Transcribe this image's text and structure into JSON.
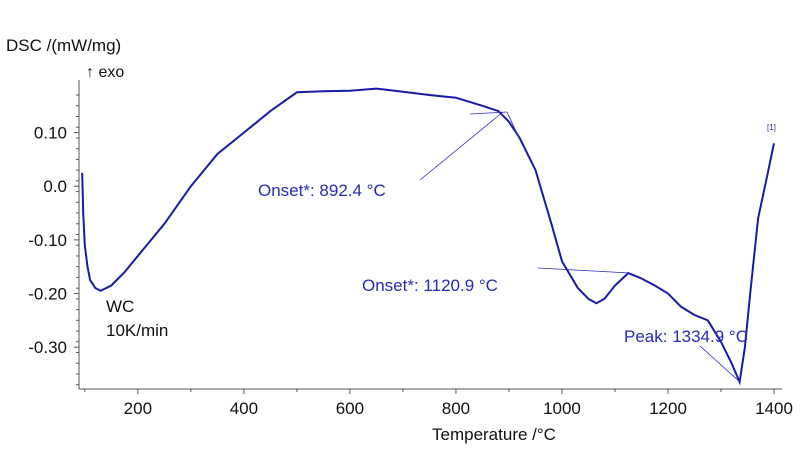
{
  "chart_data": {
    "type": "line",
    "ylabel": "DSC /(mW/mg)",
    "ylabel_sub": "↑ exo",
    "xlabel": "Temperature /°C",
    "xlim": [
      89,
      1415
    ],
    "ylim": [
      -0.378,
      0.198
    ],
    "xticks": [
      "200",
      "400",
      "600",
      "800",
      "1000",
      "1200",
      "1400"
    ],
    "yticks": [
      "0.10",
      "0.0",
      "-0.10",
      "-0.20",
      "-0.30"
    ],
    "grid": false,
    "curve_color": "#1a1aa8",
    "annotation_color": "#2a2ab4",
    "sample_label": [
      "WC",
      "10K/min"
    ],
    "curve_marker": "[1]",
    "series": [
      {
        "x": [
          95,
          97,
          100,
          105,
          110,
          120,
          130,
          150,
          175,
          200,
          250,
          300,
          350,
          400,
          450,
          500,
          550,
          600,
          650,
          700,
          750,
          800,
          850,
          880,
          900,
          920,
          950,
          980,
          1000,
          1030,
          1050,
          1065,
          1080,
          1100,
          1125,
          1150,
          1175,
          1200,
          1225,
          1250,
          1275,
          1300,
          1320,
          1335,
          1345,
          1355,
          1370,
          1385,
          1400
        ],
        "y": [
          0.025,
          -0.05,
          -0.11,
          -0.15,
          -0.175,
          -0.19,
          -0.195,
          -0.185,
          -0.16,
          -0.13,
          -0.07,
          0.0,
          0.06,
          0.1,
          0.14,
          0.175,
          0.177,
          0.178,
          0.182,
          0.176,
          0.17,
          0.165,
          0.15,
          0.14,
          0.12,
          0.09,
          0.03,
          -0.07,
          -0.14,
          -0.19,
          -0.21,
          -0.218,
          -0.21,
          -0.185,
          -0.162,
          -0.172,
          -0.185,
          -0.2,
          -0.225,
          -0.24,
          -0.25,
          -0.29,
          -0.33,
          -0.365,
          -0.3,
          -0.2,
          -0.06,
          0.01,
          0.08
        ]
      }
    ],
    "annotations": [
      {
        "text": "Onset*: 892.4 °C",
        "x": 892.4
      },
      {
        "text": "Onset*: 1120.9 °C",
        "x": 1120.9
      },
      {
        "text": "Peak: 1334.9 °C",
        "x": 1334.9
      }
    ]
  }
}
